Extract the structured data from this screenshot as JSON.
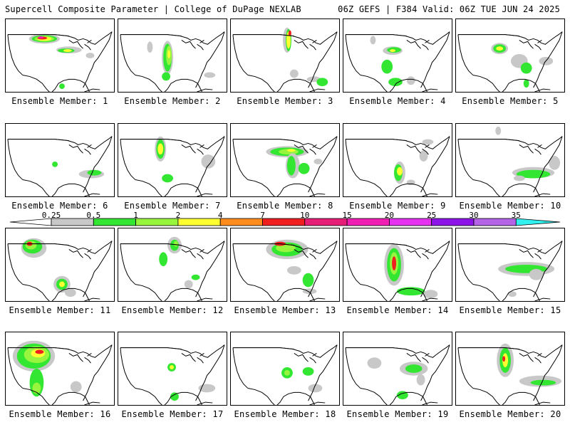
{
  "header": {
    "title": "Supercell Composite Parameter | College of DuPage NEXLAB",
    "run_info": "06Z GEFS | F384 Valid: 06Z TUE JUN 24 2025"
  },
  "colorbar": {
    "labels": [
      "0.25",
      "0.5",
      "1",
      "2",
      "4",
      "7",
      "10",
      "15",
      "20",
      "25",
      "30",
      "35"
    ],
    "colors": [
      "#c8c8c8",
      "#32e632",
      "#96f53c",
      "#ffff32",
      "#ff8c1e",
      "#f01e1e",
      "#e61e78",
      "#f01eb4",
      "#e632f0",
      "#8c14e6",
      "#b464e6",
      "#32f0f0"
    ]
  },
  "members": [
    {
      "label": "Ensemble Member: 1"
    },
    {
      "label": "Ensemble Member: 2"
    },
    {
      "label": "Ensemble Member: 3"
    },
    {
      "label": "Ensemble Member: 4"
    },
    {
      "label": "Ensemble Member: 5"
    },
    {
      "label": "Ensemble Member: 6"
    },
    {
      "label": "Ensemble Member: 7"
    },
    {
      "label": "Ensemble Member: 8"
    },
    {
      "label": "Ensemble Member: 9"
    },
    {
      "label": "Ensemble Member: 10"
    },
    {
      "label": "Ensemble Member: 11"
    },
    {
      "label": "Ensemble Member: 12"
    },
    {
      "label": "Ensemble Member: 13"
    },
    {
      "label": "Ensemble Member: 14"
    },
    {
      "label": "Ensemble Member: 15"
    },
    {
      "label": "Ensemble Member: 16"
    },
    {
      "label": "Ensemble Member: 17"
    },
    {
      "label": "Ensemble Member: 18"
    },
    {
      "label": "Ensemble Member: 19"
    },
    {
      "label": "Ensemble Member: 20"
    }
  ],
  "style": {
    "background": "#ffffff",
    "map_line_color": "#000000",
    "text_color": "#000000"
  }
}
